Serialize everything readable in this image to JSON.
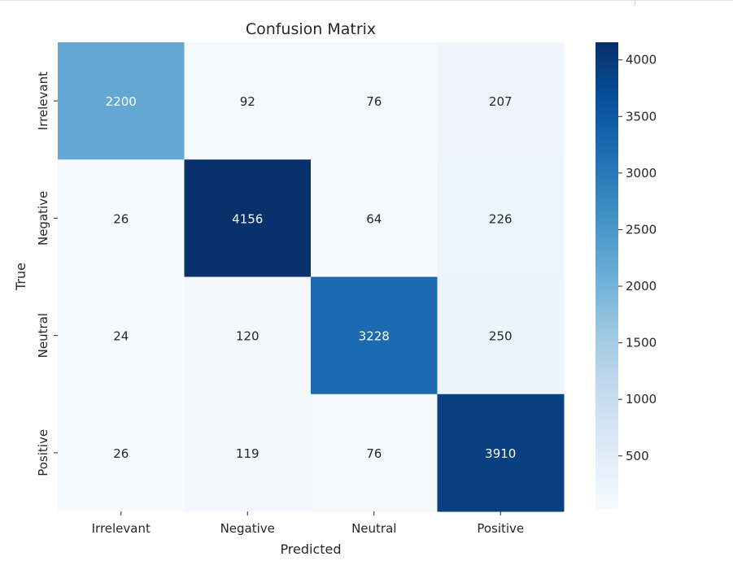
{
  "chart_data": {
    "type": "heatmap",
    "title": "Confusion Matrix",
    "xlabel": "Predicted",
    "ylabel": "True",
    "x_categories": [
      "Irrelevant",
      "Negative",
      "Neutral",
      "Positive"
    ],
    "y_categories": [
      "Irrelevant",
      "Negative",
      "Neutral",
      "Positive"
    ],
    "values": [
      [
        2200,
        92,
        76,
        207
      ],
      [
        26,
        4156,
        64,
        226
      ],
      [
        24,
        120,
        3228,
        250
      ],
      [
        26,
        119,
        76,
        3910
      ]
    ],
    "colormap": "Blues",
    "vmin": 24,
    "vmax": 4156,
    "colorbar_ticks": [
      500,
      1000,
      1500,
      2000,
      2500,
      3000,
      3500,
      4000
    ],
    "colorbar_tick_labels": [
      "500",
      "1000",
      "1500",
      "2000",
      "2500",
      "3000",
      "3500",
      "4000"
    ]
  }
}
